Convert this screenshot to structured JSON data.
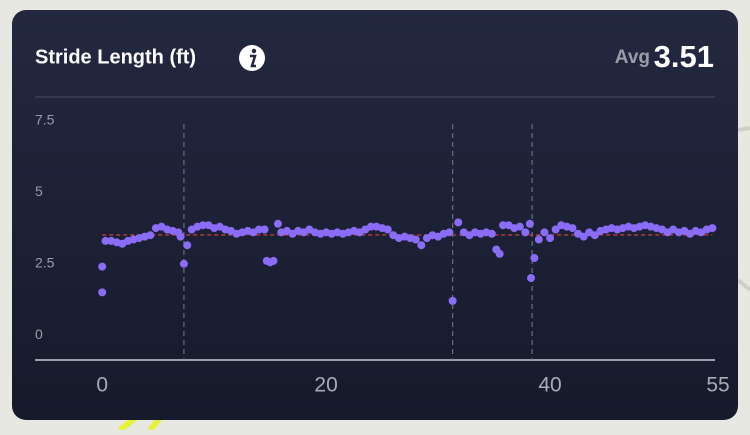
{
  "chart_data": {
    "type": "scatter",
    "title": "Stride Length (ft)",
    "avg_label": "Avg",
    "avg_value": 3.51,
    "color": "#8b6cf7",
    "avg_color": "#e0443c",
    "x": [
      0,
      0,
      0.3,
      0.8,
      1.3,
      1.8,
      2.3,
      2.8,
      3.3,
      3.8,
      4.3,
      4.8,
      5.3,
      5.8,
      6.3,
      6.8,
      7.0,
      7.3,
      7.6,
      8,
      8.5,
      9,
      9.5,
      10,
      10.5,
      11,
      11.5,
      12,
      12.5,
      13,
      13.5,
      14,
      14.5,
      14.7,
      15.0,
      15.3,
      15.7,
      16,
      16.5,
      17,
      17.5,
      18,
      18.5,
      19,
      19.5,
      20,
      20.5,
      21,
      21.5,
      22,
      22.5,
      23,
      23.5,
      24,
      24.5,
      25,
      25.5,
      26,
      26.5,
      27,
      27.5,
      28,
      28.5,
      29,
      29.5,
      30,
      30.5,
      31,
      31.3,
      31.8,
      32.3,
      32.8,
      33.3,
      33.8,
      34.3,
      34.8,
      35.2,
      35.5,
      35.8,
      36.3,
      36.8,
      37.3,
      37.8,
      38.2,
      38.3,
      38.6,
      39,
      39.5,
      40,
      40.5,
      41,
      41.5,
      42,
      42.5,
      43,
      43.5,
      44,
      44.5,
      45,
      45.5,
      46,
      46.5,
      47,
      47.5,
      48,
      48.5,
      49,
      49.5,
      50,
      50.5,
      51,
      51.5,
      52,
      52.5,
      53,
      53.5,
      54,
      54.5
    ],
    "values": [
      2.4,
      1.5,
      3.3,
      3.3,
      3.25,
      3.2,
      3.3,
      3.35,
      3.4,
      3.45,
      3.5,
      3.75,
      3.8,
      3.7,
      3.65,
      3.6,
      3.45,
      2.5,
      3.15,
      3.7,
      3.8,
      3.85,
      3.85,
      3.75,
      3.8,
      3.7,
      3.65,
      3.55,
      3.6,
      3.65,
      3.6,
      3.7,
      3.7,
      2.6,
      2.55,
      2.6,
      3.9,
      3.6,
      3.65,
      3.55,
      3.65,
      3.6,
      3.7,
      3.6,
      3.55,
      3.6,
      3.55,
      3.6,
      3.55,
      3.6,
      3.65,
      3.6,
      3.7,
      3.8,
      3.8,
      3.75,
      3.7,
      3.5,
      3.4,
      3.45,
      3.4,
      3.35,
      3.15,
      3.4,
      3.5,
      3.45,
      3.55,
      3.6,
      1.2,
      3.95,
      3.6,
      3.5,
      3.6,
      3.55,
      3.6,
      3.55,
      3.0,
      2.85,
      3.85,
      3.85,
      3.75,
      3.8,
      3.6,
      3.9,
      2.0,
      2.7,
      3.35,
      3.6,
      3.4,
      3.7,
      3.85,
      3.8,
      3.75,
      3.55,
      3.45,
      3.6,
      3.5,
      3.65,
      3.7,
      3.75,
      3.7,
      3.75,
      3.8,
      3.75,
      3.8,
      3.85,
      3.8,
      3.75,
      3.7,
      3.6,
      3.7,
      3.6,
      3.65,
      3.55,
      3.65,
      3.6,
      3.7,
      3.75
    ],
    "lap_lines": [
      7.3,
      31.3,
      38.4
    ],
    "xlim": [
      -6,
      55
    ],
    "xticks": [
      0,
      20,
      40,
      55
    ],
    "ylim": [
      -0.87,
      8.34
    ],
    "yticks": [
      0,
      2.5,
      5,
      7.5
    ]
  }
}
